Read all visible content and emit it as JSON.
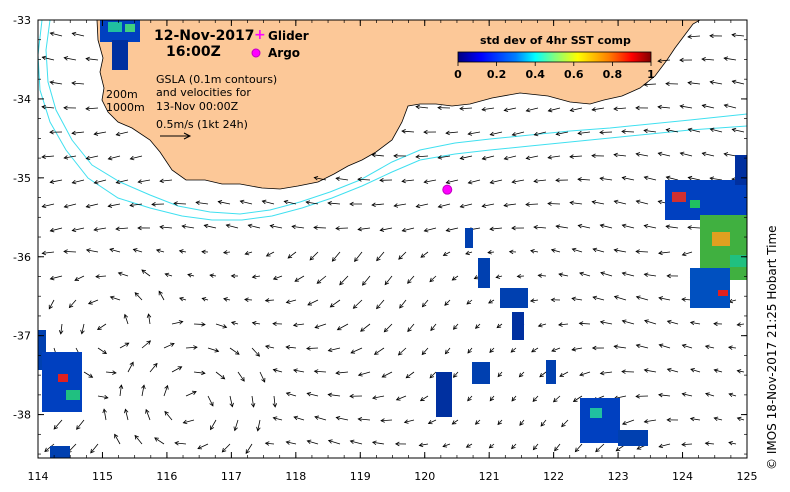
{
  "header": {
    "date": "12-Nov-2017",
    "time": "16:00Z"
  },
  "legend": {
    "glider_label": "Glider",
    "argo_label": "Argo",
    "glider_color": "#ff00ff",
    "argo_color": "#ff00ff"
  },
  "colorbar": {
    "title": "std dev of 4hr SST comp",
    "ticks": [
      "0",
      "0.2",
      "0.4",
      "0.6",
      "0.8",
      "1"
    ],
    "colors": [
      "#000080",
      "#0000ff",
      "#0080ff",
      "#00ffff",
      "#80ff80",
      "#ffff00",
      "#ff8000",
      "#ff0000",
      "#800000"
    ]
  },
  "annotations": {
    "gsla_line1": "GSLA (0.1m contours)",
    "gsla_line2": "and velocities for",
    "gsla_line3": "13-Nov 00:00Z",
    "scale_label": "0.5m/s (1kt 24h)",
    "isobath_200": "200m",
    "isobath_1000": "1000m"
  },
  "axes": {
    "x_ticks": [
      "114",
      "115",
      "116",
      "117",
      "118",
      "119",
      "120",
      "121",
      "122",
      "123",
      "124",
      "125"
    ],
    "y_ticks": [
      "-33",
      "-34",
      "-35",
      "-36",
      "-37",
      "-38"
    ],
    "x_range": [
      114,
      125
    ],
    "y_range": [
      -38.55,
      -33
    ]
  },
  "argo_float": {
    "lon": 120.35,
    "lat": -35.15
  },
  "credit": "© IMOS 18-Nov-2017 21:25 Hobart Time",
  "colors": {
    "land": "#fcc898",
    "isobath": "#40e0f0",
    "sea": "#ffffff"
  }
}
